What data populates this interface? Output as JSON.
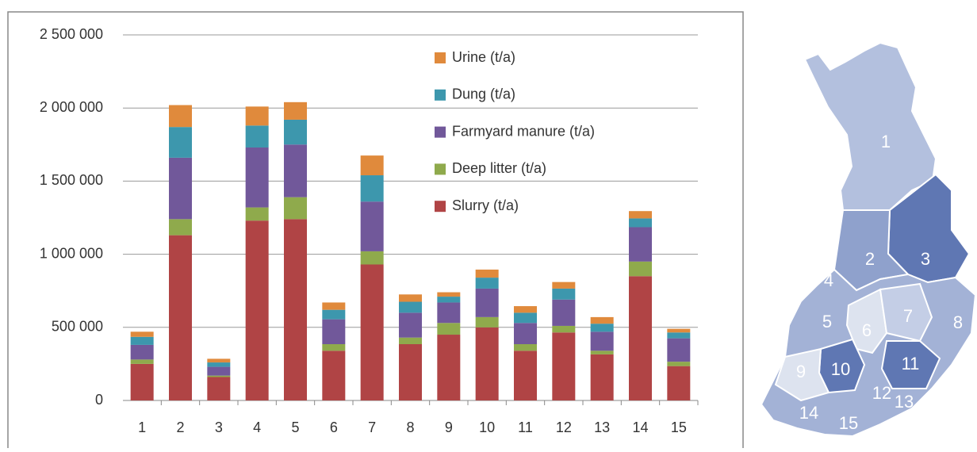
{
  "chart_data": {
    "type": "bar",
    "stacked": true,
    "categories": [
      "1",
      "2",
      "3",
      "4",
      "5",
      "6",
      "7",
      "8",
      "9",
      "10",
      "11",
      "12",
      "13",
      "14",
      "15"
    ],
    "series": [
      {
        "name": "Slurry (t/a)",
        "color": "#b04445",
        "values": [
          250000,
          1130000,
          160000,
          1230000,
          1240000,
          340000,
          930000,
          385000,
          450000,
          500000,
          340000,
          465000,
          315000,
          850000,
          235000
        ]
      },
      {
        "name": "Deep litter (t/a)",
        "color": "#8faa4c",
        "values": [
          30000,
          110000,
          10000,
          90000,
          150000,
          45000,
          90000,
          45000,
          80000,
          70000,
          45000,
          45000,
          25000,
          100000,
          30000
        ]
      },
      {
        "name": "Farmyard manure (t/a)",
        "color": "#71589a",
        "values": [
          100000,
          420000,
          60000,
          410000,
          360000,
          170000,
          340000,
          170000,
          140000,
          195000,
          145000,
          180000,
          130000,
          235000,
          160000
        ]
      },
      {
        "name": "Dung (t/a)",
        "color": "#3d97ad",
        "values": [
          55000,
          210000,
          30000,
          150000,
          170000,
          65000,
          180000,
          75000,
          40000,
          75000,
          70000,
          75000,
          55000,
          60000,
          40000
        ]
      },
      {
        "name": "Urine (t/a)",
        "color": "#e08a3c",
        "values": [
          35000,
          150000,
          25000,
          130000,
          120000,
          50000,
          135000,
          50000,
          30000,
          55000,
          45000,
          45000,
          45000,
          50000,
          25000
        ]
      }
    ],
    "ylim": [
      0,
      2500000
    ],
    "yticks": [
      0,
      {
        "value": 500000,
        "label": "500 000"
      },
      {
        "value": 1000000,
        "label": "1 000 000"
      },
      {
        "value": 1500000,
        "label": "1 500 000"
      },
      {
        "value": 2000000,
        "label": "2 000 000"
      },
      {
        "value": 2500000,
        "label": "2 500 000"
      }
    ],
    "grid": true,
    "legend": "top-right"
  },
  "map": {
    "labels": [
      "1",
      "2",
      "3",
      "4",
      "5",
      "6",
      "7",
      "8",
      "9",
      "10",
      "11",
      "12",
      "13",
      "14",
      "15"
    ]
  }
}
